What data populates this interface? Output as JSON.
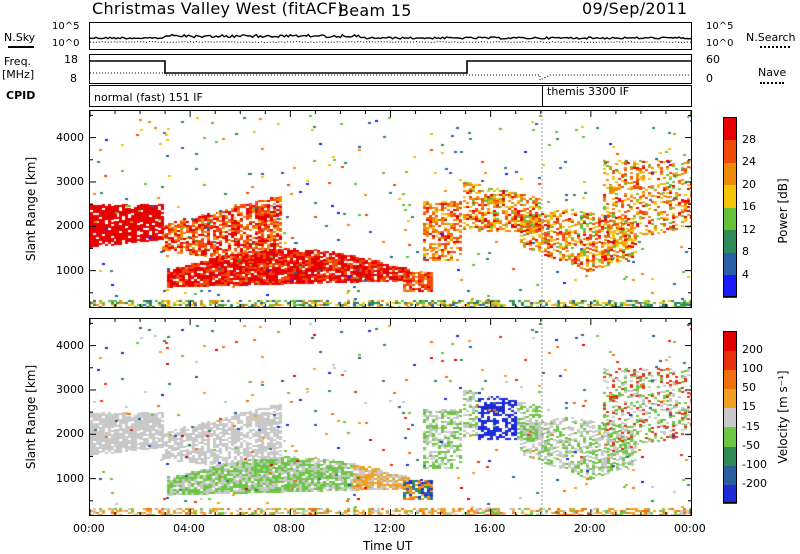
{
  "header": {
    "site": "Christmas Valley West (fitACF)",
    "beam": "Beam 15",
    "date": "09/Sep/2011"
  },
  "panel_labels": {
    "nsky": "N.Sky",
    "nsearch": "N.Search",
    "freq": "Freq.",
    "freq_unit": "[MHz]",
    "nave": "Nave",
    "cpid": "CPID",
    "noise_ticks_left": [
      "10^5",
      "10^0"
    ],
    "noise_ticks_right": [
      "10^5",
      "10^0"
    ],
    "freq_ticks_left": [
      "18",
      "8"
    ],
    "nave_ticks_right": [
      "60",
      "0"
    ]
  },
  "cpid_blocks": [
    {
      "label": "normal (fast) 151 IF",
      "start_hour": 0,
      "end_hour": 18.05
    },
    {
      "label": "themis 3300 IF",
      "start_hour": 18.05,
      "end_hour": 24
    }
  ],
  "chart_data": [
    {
      "type": "heatmap",
      "name": "power-panel",
      "ylabel": "Slant Range [km]",
      "xlim": [
        0,
        24
      ],
      "ylim": [
        180,
        4600
      ],
      "yticks": [
        1000,
        2000,
        3000,
        4000
      ],
      "colorbar": {
        "label": "Power [dB]",
        "labels": [
          "4",
          "8",
          "12",
          "16",
          "20",
          "24",
          "28"
        ],
        "colors": [
          "#1a1aff",
          "#2b5fa8",
          "#2e8b57",
          "#66c03a",
          "#f2c40a",
          "#f08a0a",
          "#ef4a0a",
          "#e60000"
        ]
      }
    },
    {
      "type": "heatmap",
      "name": "velocity-panel",
      "ylabel": "Slant Range [km]",
      "xlabel": "Time UT",
      "xlim": [
        0,
        24
      ],
      "ylim": [
        180,
        4600
      ],
      "yticks": [
        1000,
        2000,
        3000,
        4000
      ],
      "xtick_labels": [
        "00:00",
        "04:00",
        "08:00",
        "12:00",
        "16:00",
        "20:00",
        "00:00"
      ],
      "colorbar": {
        "label": "Velocity [m s⁻¹]",
        "labels": [
          "200",
          "100",
          "50",
          "15",
          "-15",
          "-50",
          "-100",
          "-200"
        ],
        "colors": [
          "#1c2bd6",
          "#2a5e9e",
          "#2e8b57",
          "#6cc644",
          "#c8c8c8",
          "#f0a020",
          "#f07010",
          "#e83010",
          "#e00000"
        ]
      }
    }
  ],
  "colors": {
    "trace": "#000000",
    "dotted": "#000000",
    "marker": "#888888"
  }
}
